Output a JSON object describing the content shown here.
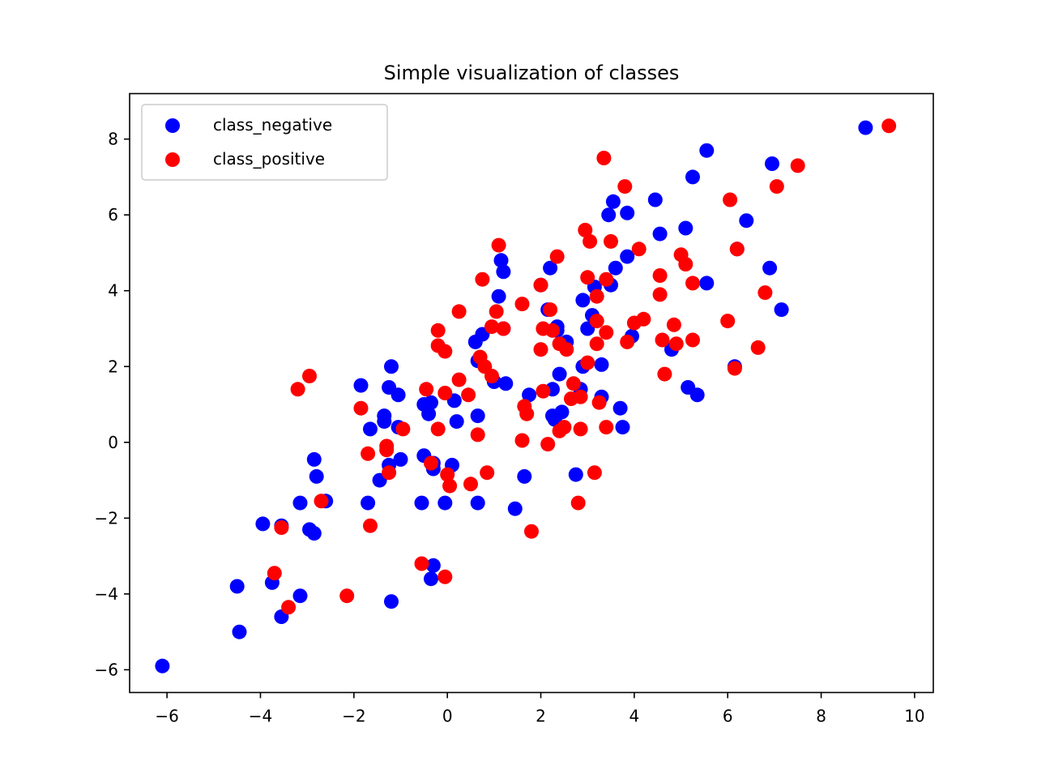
{
  "chart_data": {
    "type": "scatter",
    "title": "Simple visualization of classes",
    "xlabel": "",
    "ylabel": "",
    "xlim": [
      -6.8,
      10.4
    ],
    "ylim": [
      -6.6,
      9.2
    ],
    "xticks": [
      -6,
      -4,
      -2,
      0,
      2,
      4,
      6,
      8,
      10
    ],
    "yticks": [
      -6,
      -4,
      -2,
      0,
      2,
      4,
      6,
      8
    ],
    "xtick_labels": [
      "−6",
      "−4",
      "−2",
      "0",
      "2",
      "4",
      "6",
      "8",
      "10"
    ],
    "ytick_labels": [
      "−6",
      "−4",
      "−2",
      "0",
      "2",
      "4",
      "6",
      "8"
    ],
    "grid": false,
    "legend_position": "top-left",
    "series": [
      {
        "name": "class_negative",
        "color": "#0000ff",
        "points": [
          [
            -6.1,
            -5.9
          ],
          [
            -4.5,
            -3.8
          ],
          [
            -4.45,
            -5.0
          ],
          [
            -3.95,
            -2.15
          ],
          [
            -3.75,
            -3.7
          ],
          [
            -3.55,
            -2.2
          ],
          [
            -3.55,
            -4.6
          ],
          [
            -3.15,
            -1.6
          ],
          [
            -3.15,
            -4.05
          ],
          [
            -2.95,
            -2.3
          ],
          [
            -2.85,
            -2.4
          ],
          [
            -2.85,
            -0.45
          ],
          [
            -2.8,
            -0.9
          ],
          [
            -2.6,
            -1.55
          ],
          [
            -1.85,
            1.5
          ],
          [
            -1.7,
            -1.6
          ],
          [
            -1.65,
            0.35
          ],
          [
            -1.45,
            -1.0
          ],
          [
            -1.35,
            0.7
          ],
          [
            -1.35,
            0.55
          ],
          [
            -1.25,
            1.45
          ],
          [
            -1.25,
            -0.6
          ],
          [
            -1.2,
            2.0
          ],
          [
            -1.2,
            -4.2
          ],
          [
            -1.05,
            1.25
          ],
          [
            -1.05,
            0.4
          ],
          [
            -1.0,
            -0.45
          ],
          [
            -0.5,
            -0.35
          ],
          [
            -0.5,
            1.0
          ],
          [
            -0.55,
            -1.6
          ],
          [
            -0.4,
            0.75
          ],
          [
            -0.35,
            1.05
          ],
          [
            -0.35,
            -3.6
          ],
          [
            -0.3,
            -3.25
          ],
          [
            -0.3,
            -0.7
          ],
          [
            -0.3,
            -0.55
          ],
          [
            -0.05,
            -1.6
          ],
          [
            0.1,
            -0.6
          ],
          [
            0.15,
            1.1
          ],
          [
            0.2,
            0.55
          ],
          [
            0.6,
            2.65
          ],
          [
            0.65,
            0.7
          ],
          [
            0.65,
            -1.6
          ],
          [
            0.65,
            2.15
          ],
          [
            0.75,
            2.85
          ],
          [
            1.0,
            1.6
          ],
          [
            1.1,
            3.85
          ],
          [
            1.15,
            4.8
          ],
          [
            1.2,
            3.0
          ],
          [
            1.2,
            4.5
          ],
          [
            1.25,
            1.55
          ],
          [
            1.45,
            -1.75
          ],
          [
            1.65,
            -0.9
          ],
          [
            1.75,
            1.25
          ],
          [
            2.0,
            4.15
          ],
          [
            2.15,
            3.5
          ],
          [
            2.2,
            4.6
          ],
          [
            2.25,
            0.7
          ],
          [
            2.25,
            1.4
          ],
          [
            2.3,
            0.6
          ],
          [
            2.35,
            2.95
          ],
          [
            2.35,
            3.05
          ],
          [
            2.4,
            1.8
          ],
          [
            2.45,
            0.8
          ],
          [
            2.55,
            2.65
          ],
          [
            2.75,
            -0.85
          ],
          [
            2.85,
            1.4
          ],
          [
            2.9,
            3.75
          ],
          [
            2.9,
            2.0
          ],
          [
            3.0,
            3.0
          ],
          [
            3.1,
            3.35
          ],
          [
            3.15,
            4.1
          ],
          [
            3.3,
            2.05
          ],
          [
            3.3,
            1.2
          ],
          [
            3.45,
            6.0
          ],
          [
            3.5,
            4.15
          ],
          [
            3.55,
            6.35
          ],
          [
            3.6,
            4.6
          ],
          [
            3.7,
            0.9
          ],
          [
            3.75,
            0.4
          ],
          [
            3.85,
            6.05
          ],
          [
            3.85,
            4.9
          ],
          [
            3.95,
            2.8
          ],
          [
            4.45,
            6.4
          ],
          [
            4.55,
            5.5
          ],
          [
            4.8,
            2.45
          ],
          [
            5.1,
            5.65
          ],
          [
            5.15,
            1.45
          ],
          [
            5.25,
            7.0
          ],
          [
            5.35,
            1.25
          ],
          [
            5.55,
            7.7
          ],
          [
            5.55,
            4.2
          ],
          [
            6.15,
            2.0
          ],
          [
            6.2,
            5.1
          ],
          [
            6.4,
            5.85
          ],
          [
            6.9,
            4.6
          ],
          [
            6.95,
            7.35
          ],
          [
            7.15,
            3.5
          ],
          [
            8.95,
            8.3
          ]
        ]
      },
      {
        "name": "class_positive",
        "color": "#ff0000",
        "points": [
          [
            -3.7,
            -3.45
          ],
          [
            -3.55,
            -2.25
          ],
          [
            -3.4,
            -4.35
          ],
          [
            -3.2,
            1.4
          ],
          [
            -2.95,
            1.75
          ],
          [
            -2.7,
            -1.55
          ],
          [
            -2.15,
            -4.05
          ],
          [
            -1.85,
            0.9
          ],
          [
            -1.7,
            -0.3
          ],
          [
            -1.65,
            -2.2
          ],
          [
            -1.3,
            -0.1
          ],
          [
            -1.3,
            -0.2
          ],
          [
            -1.25,
            -0.8
          ],
          [
            -0.95,
            0.35
          ],
          [
            -0.55,
            -3.2
          ],
          [
            -0.45,
            1.4
          ],
          [
            -0.35,
            -0.55
          ],
          [
            -0.2,
            2.95
          ],
          [
            -0.2,
            2.55
          ],
          [
            -0.2,
            0.35
          ],
          [
            -0.05,
            2.4
          ],
          [
            -0.05,
            1.3
          ],
          [
            -0.05,
            -3.55
          ],
          [
            0.0,
            -0.85
          ],
          [
            0.05,
            -1.15
          ],
          [
            0.25,
            3.45
          ],
          [
            0.25,
            1.65
          ],
          [
            0.45,
            1.25
          ],
          [
            0.5,
            -1.1
          ],
          [
            0.65,
            0.2
          ],
          [
            0.7,
            2.25
          ],
          [
            0.75,
            4.3
          ],
          [
            0.8,
            2.0
          ],
          [
            0.85,
            -0.8
          ],
          [
            0.95,
            1.75
          ],
          [
            0.95,
            3.05
          ],
          [
            1.05,
            3.45
          ],
          [
            1.1,
            5.2
          ],
          [
            1.2,
            3.0
          ],
          [
            1.6,
            3.65
          ],
          [
            1.6,
            0.05
          ],
          [
            1.65,
            0.95
          ],
          [
            1.7,
            0.75
          ],
          [
            1.8,
            -2.35
          ],
          [
            2.0,
            4.15
          ],
          [
            2.0,
            2.45
          ],
          [
            2.05,
            3.0
          ],
          [
            2.05,
            1.35
          ],
          [
            2.15,
            -0.05
          ],
          [
            2.2,
            3.5
          ],
          [
            2.25,
            2.95
          ],
          [
            2.35,
            4.9
          ],
          [
            2.4,
            2.6
          ],
          [
            2.4,
            0.3
          ],
          [
            2.55,
            2.45
          ],
          [
            2.5,
            0.4
          ],
          [
            2.65,
            1.15
          ],
          [
            2.7,
            1.55
          ],
          [
            2.8,
            -1.6
          ],
          [
            2.85,
            0.35
          ],
          [
            2.85,
            1.2
          ],
          [
            2.95,
            5.6
          ],
          [
            3.0,
            4.35
          ],
          [
            3.0,
            2.1
          ],
          [
            3.05,
            5.3
          ],
          [
            3.15,
            -0.8
          ],
          [
            3.2,
            3.85
          ],
          [
            3.2,
            3.2
          ],
          [
            3.2,
            2.6
          ],
          [
            3.25,
            1.05
          ],
          [
            3.35,
            7.5
          ],
          [
            3.4,
            4.3
          ],
          [
            3.4,
            2.9
          ],
          [
            3.4,
            0.4
          ],
          [
            3.5,
            5.3
          ],
          [
            3.8,
            6.75
          ],
          [
            3.85,
            2.65
          ],
          [
            4.0,
            3.15
          ],
          [
            4.1,
            5.1
          ],
          [
            4.2,
            3.25
          ],
          [
            4.55,
            4.4
          ],
          [
            4.55,
            3.9
          ],
          [
            4.6,
            2.7
          ],
          [
            4.65,
            1.8
          ],
          [
            4.85,
            3.1
          ],
          [
            4.9,
            2.6
          ],
          [
            5.0,
            4.95
          ],
          [
            5.1,
            4.7
          ],
          [
            5.25,
            2.7
          ],
          [
            5.25,
            4.2
          ],
          [
            6.0,
            3.2
          ],
          [
            6.05,
            6.4
          ],
          [
            6.15,
            1.95
          ],
          [
            6.2,
            5.1
          ],
          [
            6.65,
            2.5
          ],
          [
            6.8,
            3.95
          ],
          [
            7.05,
            6.75
          ],
          [
            7.5,
            7.3
          ],
          [
            9.45,
            8.35
          ]
        ]
      }
    ]
  }
}
